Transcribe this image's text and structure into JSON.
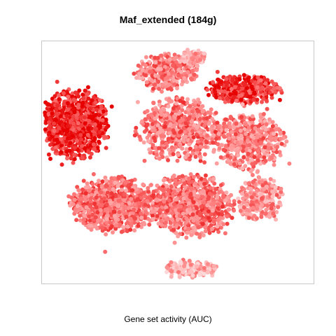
{
  "chart_data": {
    "type": "scatter",
    "title": "Maf_extended (184g)",
    "xlabel": "Gene set activity (AUC)",
    "ylabel": "",
    "grid": false,
    "legend": "none",
    "axes_visible": false,
    "color_scale": {
      "low": "#fde2e2",
      "mid": "#ff7f7f",
      "high": "#e60000"
    },
    "clusters": [
      {
        "name": "left-lobe",
        "cx": -0.8,
        "cy": 0.35,
        "rx": 0.23,
        "ry": 0.27,
        "n": 900,
        "intensity": 0.85
      },
      {
        "name": "top-center",
        "cx": -0.1,
        "cy": 0.8,
        "rx": 0.22,
        "ry": 0.14,
        "n": 380,
        "intensity": 0.5
      },
      {
        "name": "top-stem",
        "cx": 0.12,
        "cy": 0.93,
        "rx": 0.08,
        "ry": 0.06,
        "n": 110,
        "intensity": 0.3
      },
      {
        "name": "upper-right",
        "cx": 0.5,
        "cy": 0.65,
        "rx": 0.26,
        "ry": 0.11,
        "n": 380,
        "intensity": 0.8
      },
      {
        "name": "right-mid",
        "cx": 0.55,
        "cy": 0.2,
        "rx": 0.25,
        "ry": 0.22,
        "n": 520,
        "intensity": 0.5
      },
      {
        "name": "center",
        "cx": 0.0,
        "cy": 0.3,
        "rx": 0.3,
        "ry": 0.25,
        "n": 600,
        "intensity": 0.55
      },
      {
        "name": "lower-left",
        "cx": -0.5,
        "cy": -0.35,
        "rx": 0.3,
        "ry": 0.22,
        "n": 800,
        "intensity": 0.55
      },
      {
        "name": "lower-center",
        "cx": 0.1,
        "cy": -0.35,
        "rx": 0.3,
        "ry": 0.25,
        "n": 780,
        "intensity": 0.55
      },
      {
        "name": "lower-right",
        "cx": 0.62,
        "cy": -0.3,
        "rx": 0.16,
        "ry": 0.18,
        "n": 260,
        "intensity": 0.4
      },
      {
        "name": "bottom-tail",
        "cx": 0.1,
        "cy": -0.9,
        "rx": 0.18,
        "ry": 0.07,
        "n": 170,
        "intensity": 0.3
      }
    ]
  }
}
